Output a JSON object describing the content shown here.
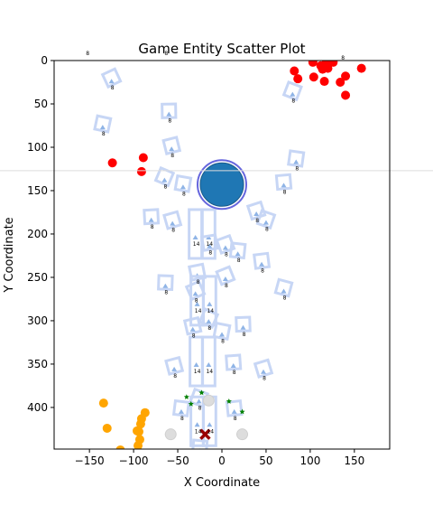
{
  "chart_data": {
    "type": "scatter",
    "title": "Game Entity Scatter Plot",
    "xlabel": "X Coordinate",
    "ylabel": "Y Coordinate",
    "xlim": [
      -190,
      190
    ],
    "ylim": [
      448,
      0
    ],
    "y_inverted": true,
    "grid": false,
    "x_ticks": [
      -150,
      -100,
      -50,
      0,
      50,
      100,
      150
    ],
    "y_ticks": [
      0,
      50,
      100,
      150,
      200,
      250,
      300,
      350,
      400
    ],
    "horizontal_line": {
      "y": 127,
      "color": "#dddddd"
    },
    "colors": {
      "red": "#ff0000",
      "orange": "#ffa500",
      "green": "#008000",
      "blue": "#1f77b4",
      "outline": "#6666dd",
      "square": "#c7d6f5",
      "triangle": "#8fb4e6",
      "gray": "#dddddd",
      "cross": "#990000"
    },
    "series": [
      {
        "marker": "circle",
        "color": "#ff0000",
        "points": [
          {
            "x": 82,
            "y": 12
          },
          {
            "x": 86,
            "y": 21
          },
          {
            "x": 103,
            "y": 2
          },
          {
            "x": 104,
            "y": 19
          },
          {
            "x": 112,
            "y": 6
          },
          {
            "x": 114,
            "y": 10
          },
          {
            "x": 118,
            "y": 3
          },
          {
            "x": 116,
            "y": 24
          },
          {
            "x": 120,
            "y": 9
          },
          {
            "x": 126,
            "y": 2
          },
          {
            "x": 134,
            "y": 25
          },
          {
            "x": 140,
            "y": 18
          },
          {
            "x": 140,
            "y": 40
          },
          {
            "x": 158,
            "y": 9
          },
          {
            "x": -124,
            "y": 118
          },
          {
            "x": -89,
            "y": 112
          },
          {
            "x": -91,
            "y": 128
          }
        ]
      },
      {
        "marker": "circle",
        "color": "#ffa500",
        "points": [
          {
            "x": -134,
            "y": 395
          },
          {
            "x": -130,
            "y": 424
          },
          {
            "x": -115,
            "y": 449
          },
          {
            "x": -96,
            "y": 427
          },
          {
            "x": -94,
            "y": 428
          },
          {
            "x": -92,
            "y": 419
          },
          {
            "x": -91,
            "y": 413
          },
          {
            "x": -87,
            "y": 406
          },
          {
            "x": -93,
            "y": 437
          },
          {
            "x": -95,
            "y": 444
          }
        ]
      },
      {
        "marker": "star",
        "color": "#008000",
        "points": [
          {
            "x": -40,
            "y": 388
          },
          {
            "x": -35,
            "y": 396
          },
          {
            "x": -23,
            "y": 383
          },
          {
            "x": 8,
            "y": 393
          },
          {
            "x": 23,
            "y": 405
          }
        ]
      },
      {
        "marker": "gray-circle",
        "color": "#dddddd",
        "points": [
          {
            "x": -58,
            "y": 431
          },
          {
            "x": -15,
            "y": 392
          },
          {
            "x": 23,
            "y": 431
          }
        ]
      },
      {
        "marker": "big-circle",
        "color": "#1f77b4",
        "points": [
          {
            "x": 0,
            "y": 143
          }
        ]
      },
      {
        "marker": "cross",
        "color": "#990000",
        "points": [
          {
            "x": -19,
            "y": 431
          }
        ]
      }
    ],
    "entities": [
      {
        "x": -125,
        "y": 20,
        "label": "8"
      },
      {
        "x": -135,
        "y": 73,
        "label": "8"
      },
      {
        "x": -60,
        "y": 58,
        "label": "8"
      },
      {
        "x": -57,
        "y": 98,
        "label": "8"
      },
      {
        "x": -65,
        "y": 134,
        "label": "8"
      },
      {
        "x": -44,
        "y": 142,
        "label": "8"
      },
      {
        "x": -80,
        "y": 180,
        "label": "8"
      },
      {
        "x": -56,
        "y": 184,
        "label": "8"
      },
      {
        "x": 80,
        "y": 35,
        "label": "8"
      },
      {
        "x": 84,
        "y": 113,
        "label": "8"
      },
      {
        "x": 70,
        "y": 140,
        "label": "8"
      },
      {
        "x": 39,
        "y": 173,
        "label": "8"
      },
      {
        "x": 50,
        "y": 183,
        "label": "8"
      },
      {
        "x": 18,
        "y": 219,
        "label": "8"
      },
      {
        "x": 45,
        "y": 231,
        "label": "8"
      },
      {
        "x": 4,
        "y": 212,
        "label": "8"
      },
      {
        "x": -15,
        "y": 200,
        "label": "14"
      },
      {
        "x": -30,
        "y": 200,
        "label": "14"
      },
      {
        "x": -14,
        "y": 210,
        "label": "8"
      },
      {
        "x": 4,
        "y": 248,
        "label": "8"
      },
      {
        "x": 70,
        "y": 262,
        "label": "8"
      },
      {
        "x": -64,
        "y": 256,
        "label": "8"
      },
      {
        "x": -28,
        "y": 244,
        "label": "8"
      },
      {
        "x": -30,
        "y": 265,
        "label": "8"
      },
      {
        "x": -28,
        "y": 277,
        "label": "14"
      },
      {
        "x": -14,
        "y": 277,
        "label": "14"
      },
      {
        "x": -33,
        "y": 306,
        "label": "8"
      },
      {
        "x": -15,
        "y": 297,
        "label": "8"
      },
      {
        "x": 0,
        "y": 312,
        "label": "8"
      },
      {
        "x": 24,
        "y": 304,
        "label": "8"
      },
      {
        "x": -54,
        "y": 352,
        "label": "8"
      },
      {
        "x": -29,
        "y": 347,
        "label": "14"
      },
      {
        "x": -15,
        "y": 347,
        "label": "14"
      },
      {
        "x": 13,
        "y": 348,
        "label": "8"
      },
      {
        "x": 47,
        "y": 355,
        "label": "8"
      },
      {
        "x": -26,
        "y": 389,
        "label": "8"
      },
      {
        "x": -46,
        "y": 401,
        "label": "8"
      },
      {
        "x": 14,
        "y": 401,
        "label": "8"
      },
      {
        "x": -28,
        "y": 416,
        "label": "14"
      },
      {
        "x": -14,
        "y": 416,
        "label": "14"
      },
      {
        "x": -25,
        "y": 446,
        "label": "8"
      }
    ],
    "floating_labels": [
      {
        "x": -152,
        "y": -6,
        "label": "8"
      },
      {
        "x": -63,
        "y": -6,
        "label": "8"
      },
      {
        "x": 137,
        "y": -1,
        "label": "8"
      }
    ]
  }
}
